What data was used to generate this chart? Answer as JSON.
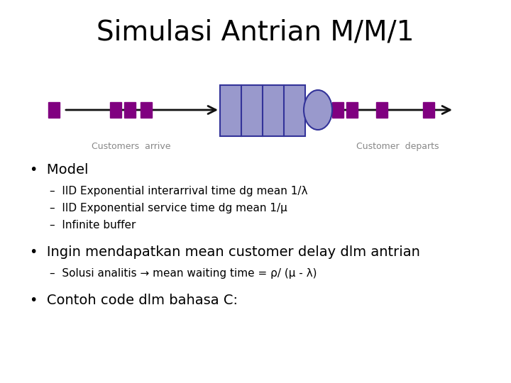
{
  "title": "Simulasi Antrian M/M/1",
  "title_fontsize": 28,
  "bg_color": "#ffffff",
  "purple_color": "#800080",
  "queue_box_color": "#9999cc",
  "queue_box_edge": "#333399",
  "server_ellipse_color": "#9999cc",
  "server_ellipse_edge": "#333399",
  "label_arrive": "Customers  arrive",
  "label_departs": "Customer  departs",
  "label_fontsize": 9,
  "label_color": "#888888",
  "bullet1": "Model",
  "sub1a": "IID Exponential interarrival time dg mean 1/λ",
  "sub1b": "IID Exponential service time dg mean 1/μ",
  "sub1c": "Infinite buffer",
  "bullet2": "Ingin mendapatkan mean customer delay dlm antrian",
  "sub2a": "Solusi analitis → mean waiting time = ρ/ (μ - λ)",
  "bullet3": "Contoh code dlm bahasa C:",
  "bullet_fontsize": 14,
  "sub_fontsize": 11,
  "bullet2_fontsize": 14,
  "arrow_color": "#111111",
  "divider_color": "#333399"
}
